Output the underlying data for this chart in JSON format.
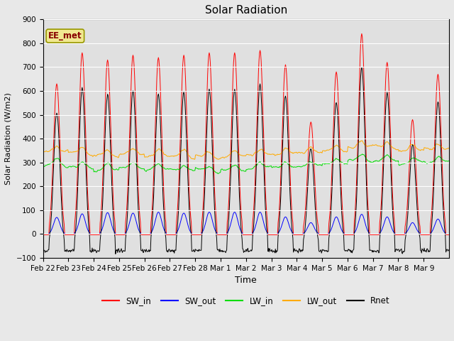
{
  "title": "Solar Radiation",
  "xlabel": "Time",
  "ylabel": "Solar Radiation (W/m2)",
  "ylim": [
    -100,
    900
  ],
  "yticks": [
    -100,
    0,
    100,
    200,
    300,
    400,
    500,
    600,
    700,
    800,
    900
  ],
  "xtick_labels": [
    "Feb 22",
    "Feb 23",
    "Feb 24",
    "Feb 25",
    "Feb 26",
    "Feb 27",
    "Feb 28",
    "Mar 1",
    "Mar 2",
    "Mar 3",
    "Mar 4",
    "Mar 5",
    "Mar 6",
    "Mar 7",
    "Mar 8",
    "Mar 9"
  ],
  "annotation_text": "EE_met",
  "fig_bg_color": "#e8e8e8",
  "plot_bg_color": "#e0e0e0",
  "SW_in_color": "#ff0000",
  "SW_out_color": "#0000ff",
  "LW_in_color": "#00dd00",
  "LW_out_color": "#ffaa00",
  "Rnet_color": "#000000",
  "n_days": 16,
  "pts_per_day": 48,
  "SW_in_peaks": [
    630,
    760,
    730,
    750,
    740,
    750,
    760,
    760,
    770,
    710,
    470,
    680,
    840,
    720,
    480,
    670
  ],
  "SW_out_peaks": [
    70,
    85,
    90,
    88,
    92,
    88,
    92,
    92,
    92,
    72,
    48,
    72,
    83,
    72,
    48,
    63
  ],
  "LW_in_base": [
    290,
    280,
    270,
    278,
    272,
    268,
    265,
    268,
    278,
    280,
    285,
    295,
    310,
    308,
    298,
    302
  ],
  "LW_out_base": [
    345,
    338,
    328,
    335,
    328,
    325,
    322,
    325,
    332,
    335,
    340,
    348,
    365,
    362,
    350,
    355
  ],
  "SW_in_night": -3,
  "Rnet_night": -70,
  "Rnet_night_var": 15
}
